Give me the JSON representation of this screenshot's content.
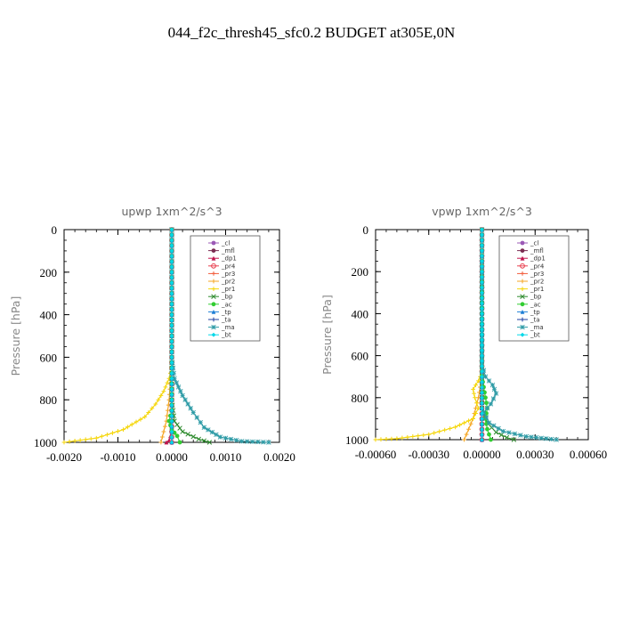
{
  "page": {
    "title": "044_f2c_thresh45_sfc0.2  BUDGET at305E,0N"
  },
  "chart_data": [
    {
      "type": "line",
      "title": "upwp   1xm^2/s^3",
      "ylabel": "Pressure [hPa]",
      "xlabel": "",
      "xlim": [
        -0.002,
        0.002
      ],
      "ylim": [
        1000,
        0
      ],
      "xticks": [
        -0.002,
        -0.001,
        0,
        0.001,
        0.002
      ],
      "xtick_labels": [
        "-0.0020",
        "-0.0010",
        "0.0000",
        "0.0010",
        "0.0020"
      ],
      "yticks": [
        0,
        200,
        400,
        600,
        800,
        1000
      ],
      "ytick_labels": [
        "0",
        "200",
        "400",
        "600",
        "800",
        "1000"
      ],
      "grid": false,
      "legend_position": "top-right",
      "series": [
        {
          "name": "_cl",
          "color": "#9B59B6",
          "marker": "circle",
          "points": [
            [
              0,
              0
            ],
            [
              0,
              100
            ],
            [
              0,
              200
            ],
            [
              0,
              300
            ],
            [
              0,
              400
            ],
            [
              0,
              500
            ],
            [
              0,
              600
            ],
            [
              0,
              700
            ],
            [
              0,
              800
            ],
            [
              0,
              900
            ],
            [
              0,
              1000
            ]
          ]
        },
        {
          "name": "_mfl",
          "color": "#7B2D52",
          "marker": "circle",
          "points": [
            [
              0,
              0
            ],
            [
              0,
              100
            ],
            [
              0,
              200
            ],
            [
              0,
              300
            ],
            [
              0,
              400
            ],
            [
              0,
              500
            ],
            [
              0,
              600
            ],
            [
              0,
              700
            ],
            [
              0,
              800
            ],
            [
              0,
              900
            ],
            [
              0,
              1000
            ]
          ]
        },
        {
          "name": "_dp1",
          "color": "#C0134C",
          "marker": "triangle",
          "points": [
            [
              0,
              0
            ],
            [
              0,
              100
            ],
            [
              0,
              200
            ],
            [
              0,
              300
            ],
            [
              0,
              400
            ],
            [
              0,
              500
            ],
            [
              0,
              600
            ],
            [
              0,
              700
            ],
            [
              0,
              800
            ],
            [
              0,
              900
            ],
            [
              0,
              950
            ],
            [
              -5e-05,
              990
            ],
            [
              -0.0001,
              1000
            ]
          ]
        },
        {
          "name": "_pr4",
          "color": "#E8404F",
          "marker": "circle-open",
          "points": [
            [
              0,
              0
            ],
            [
              0,
              200
            ],
            [
              0,
              400
            ],
            [
              0,
              600
            ],
            [
              0,
              800
            ],
            [
              0,
              1000
            ]
          ]
        },
        {
          "name": "_pr3",
          "color": "#F25C3B",
          "marker": "plus",
          "points": [
            [
              0,
              0
            ],
            [
              0,
              200
            ],
            [
              0,
              400
            ],
            [
              0,
              600
            ],
            [
              0,
              700
            ],
            [
              0,
              800
            ],
            [
              0,
              900
            ],
            [
              0,
              1000
            ]
          ]
        },
        {
          "name": "_pr2",
          "color": "#F5A623",
          "marker": "plus",
          "points": [
            [
              0,
              0
            ],
            [
              0,
              600
            ],
            [
              -2e-05,
              700
            ],
            [
              -5e-05,
              800
            ],
            [
              -0.0001,
              900
            ],
            [
              -0.0002,
              1000
            ]
          ]
        },
        {
          "name": "_pr1",
          "color": "#F5D60A",
          "marker": "plus",
          "points": [
            [
              0,
              0
            ],
            [
              0,
              650
            ],
            [
              -5e-05,
              700
            ],
            [
              -0.00015,
              760
            ],
            [
              -0.0003,
              820
            ],
            [
              -0.0005,
              880
            ],
            [
              -0.0009,
              940
            ],
            [
              -0.0014,
              980
            ],
            [
              -0.002,
              1000
            ]
          ]
        },
        {
          "name": "_bp",
          "color": "#2E8B2E",
          "marker": "cross",
          "points": [
            [
              0,
              0
            ],
            [
              0,
              800
            ],
            [
              5e-05,
              900
            ],
            [
              0.0002,
              950
            ],
            [
              0.0005,
              985
            ],
            [
              0.0007,
              1000
            ]
          ]
        },
        {
          "name": "_ac",
          "color": "#32CD32",
          "marker": "circle",
          "points": [
            [
              0,
              0
            ],
            [
              0,
              850
            ],
            [
              -5e-05,
              900
            ],
            [
              0,
              940
            ],
            [
              0.0001,
              970
            ],
            [
              0.00015,
              1000
            ]
          ]
        },
        {
          "name": "_tp",
          "color": "#1E7FD6",
          "marker": "triangle",
          "points": [
            [
              0,
              0
            ],
            [
              0,
              100
            ],
            [
              0,
              300
            ],
            [
              0,
              500
            ],
            [
              0,
              650
            ],
            [
              0,
              700
            ],
            [
              0,
              800
            ],
            [
              0,
              900
            ],
            [
              0,
              1000
            ]
          ]
        },
        {
          "name": "_ta",
          "color": "#1E3FA0",
          "marker": "plus",
          "points": [
            [
              0,
              0
            ],
            [
              0,
              500
            ],
            [
              0,
              900
            ],
            [
              0,
              1000
            ]
          ]
        },
        {
          "name": "_ma",
          "color": "#2E9BA6",
          "marker": "star",
          "points": [
            [
              0,
              0
            ],
            [
              0,
              600
            ],
            [
              5e-05,
              700
            ],
            [
              0.0002,
              780
            ],
            [
              0.0004,
              860
            ],
            [
              0.0006,
              930
            ],
            [
              0.0009,
              975
            ],
            [
              0.0013,
              995
            ],
            [
              0.0018,
              1000
            ]
          ]
        },
        {
          "name": "_bt",
          "color": "#00D8E8",
          "marker": "diamond",
          "points": [
            [
              0,
              0
            ],
            [
              0,
              500
            ],
            [
              0,
              1000
            ]
          ]
        }
      ]
    },
    {
      "type": "line",
      "title": "vpwp   1xm^2/s^3",
      "ylabel": "Pressure [hPa]",
      "xlabel": "",
      "xlim": [
        -0.0006,
        0.0006
      ],
      "ylim": [
        1000,
        0
      ],
      "xticks": [
        -0.0006,
        -0.0003,
        0,
        0.0003,
        0.0006
      ],
      "xtick_labels": [
        "-0.00060",
        "-0.00030",
        "0.00000",
        "0.00030",
        "0.00060"
      ],
      "yticks": [
        0,
        200,
        400,
        600,
        800,
        1000
      ],
      "ytick_labels": [
        "0",
        "200",
        "400",
        "600",
        "800",
        "1000"
      ],
      "grid": false,
      "legend_position": "top-right",
      "series": [
        {
          "name": "_cl",
          "color": "#9B59B6",
          "marker": "circle",
          "points": [
            [
              0,
              0
            ],
            [
              0,
              200
            ],
            [
              0,
              400
            ],
            [
              0,
              600
            ],
            [
              0,
              800
            ],
            [
              0,
              1000
            ]
          ]
        },
        {
          "name": "_mfl",
          "color": "#7B2D52",
          "marker": "circle",
          "points": [
            [
              0,
              0
            ],
            [
              0,
              100
            ],
            [
              0,
              200
            ],
            [
              0,
              300
            ],
            [
              0,
              400
            ],
            [
              0,
              500
            ],
            [
              0,
              600
            ],
            [
              0,
              700
            ],
            [
              0,
              800
            ],
            [
              0,
              900
            ],
            [
              0,
              1000
            ]
          ]
        },
        {
          "name": "_dp1",
          "color": "#C0134C",
          "marker": "triangle",
          "points": [
            [
              0,
              0
            ],
            [
              0,
              100
            ],
            [
              0,
              200
            ],
            [
              0,
              300
            ],
            [
              0,
              400
            ],
            [
              0,
              500
            ],
            [
              0,
              600
            ],
            [
              0,
              700
            ],
            [
              0,
              800
            ],
            [
              0,
              900
            ],
            [
              0,
              1000
            ]
          ]
        },
        {
          "name": "_pr4",
          "color": "#E8404F",
          "marker": "circle-open",
          "points": [
            [
              0,
              0
            ],
            [
              0,
              400
            ],
            [
              0,
              800
            ],
            [
              0,
              1000
            ]
          ]
        },
        {
          "name": "_pr3",
          "color": "#F25C3B",
          "marker": "plus",
          "points": [
            [
              0,
              0
            ],
            [
              0,
              500
            ],
            [
              0,
              1000
            ]
          ]
        },
        {
          "name": "_pr2",
          "color": "#F5A623",
          "marker": "plus",
          "points": [
            [
              0,
              0
            ],
            [
              0,
              700
            ],
            [
              -2e-05,
              800
            ],
            [
              -5e-05,
              900
            ],
            [
              -0.0001,
              1000
            ]
          ]
        },
        {
          "name": "_pr1",
          "color": "#F5D60A",
          "marker": "plus",
          "points": [
            [
              0,
              0
            ],
            [
              0,
              680
            ],
            [
              -2e-05,
              720
            ],
            [
              -5e-05,
              760
            ],
            [
              -4e-05,
              800
            ],
            [
              -2e-05,
              850
            ],
            [
              -5e-05,
              900
            ],
            [
              -0.00015,
              940
            ],
            [
              -0.0003,
              975
            ],
            [
              -0.00048,
              995
            ],
            [
              -0.0006,
              1000
            ]
          ]
        },
        {
          "name": "_bp",
          "color": "#2E8B2E",
          "marker": "cross",
          "points": [
            [
              0,
              0
            ],
            [
              0,
              850
            ],
            [
              3e-05,
              920
            ],
            [
              8e-05,
              965
            ],
            [
              0.00014,
              990
            ],
            [
              0.00018,
              1000
            ]
          ]
        },
        {
          "name": "_ac",
          "color": "#32CD32",
          "marker": "circle",
          "points": [
            [
              0,
              0
            ],
            [
              0,
              700
            ],
            [
              1e-05,
              750
            ],
            [
              2e-05,
              800
            ],
            [
              3e-05,
              850
            ],
            [
              2e-05,
              900
            ],
            [
              3e-05,
              950
            ],
            [
              5e-05,
              1000
            ]
          ]
        },
        {
          "name": "_tp",
          "color": "#1E7FD6",
          "marker": "triangle",
          "points": [
            [
              0,
              0
            ],
            [
              0,
              700
            ],
            [
              0,
              800
            ],
            [
              0,
              900
            ],
            [
              0,
              1000
            ]
          ]
        },
        {
          "name": "_ta",
          "color": "#1E3FA0",
          "marker": "plus",
          "points": [
            [
              0,
              0
            ],
            [
              0,
              500
            ],
            [
              0,
              1000
            ]
          ]
        },
        {
          "name": "_ma",
          "color": "#2E9BA6",
          "marker": "star",
          "points": [
            [
              0,
              0
            ],
            [
              0,
              640
            ],
            [
              2e-05,
              700
            ],
            [
              6e-05,
              740
            ],
            [
              8e-05,
              780
            ],
            [
              5e-05,
              830
            ],
            [
              1e-05,
              870
            ],
            [
              4e-05,
              920
            ],
            [
              0.00012,
              960
            ],
            [
              0.00025,
              985
            ],
            [
              0.00042,
              1000
            ]
          ]
        },
        {
          "name": "_bt",
          "color": "#00D8E8",
          "marker": "diamond",
          "points": [
            [
              0,
              0
            ],
            [
              0,
              500
            ],
            [
              0,
              1000
            ]
          ]
        }
      ]
    }
  ]
}
